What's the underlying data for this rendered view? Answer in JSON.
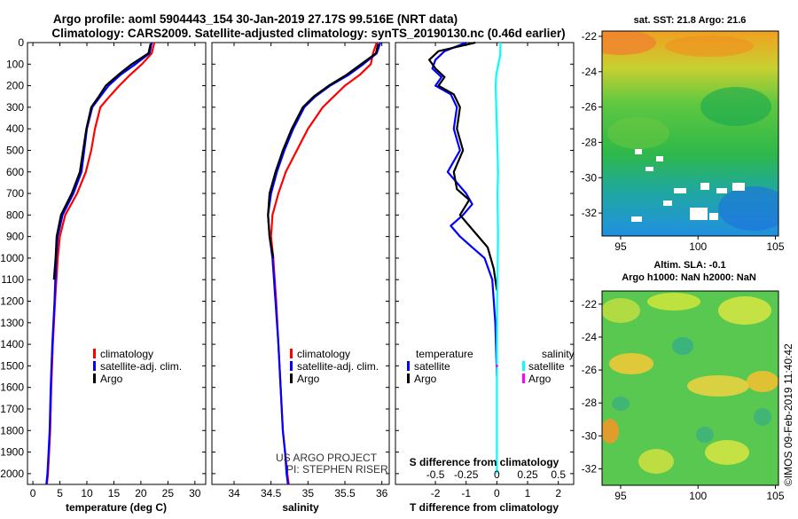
{
  "header": {
    "title_line1": "Argo profile: aoml 5904443_154 30-Jan-2019 27.17S 99.516E (NRT data)",
    "title_line2": "Climatology: CARS2009. Satellite-adjusted climatology: synTS_20190130.nc (0.46d earlier)"
  },
  "depth_axis": {
    "ticks": [
      "0",
      "100",
      "200",
      "300",
      "400",
      "500",
      "600",
      "700",
      "800",
      "900",
      "1000",
      "1100",
      "1200",
      "1300",
      "1400",
      "1500",
      "1600",
      "1700",
      "1800",
      "1900",
      "2000"
    ],
    "range": [
      0,
      2050
    ]
  },
  "chart_data": [
    {
      "type": "line",
      "name": "temperature-panel",
      "xlabel": "temperature (deg C)",
      "xlim": [
        -1,
        32
      ],
      "xticks": [
        "0",
        "5",
        "10",
        "15",
        "20",
        "25",
        "30"
      ],
      "ylabel": "depth",
      "legend": [
        "climatology",
        "satellite-adj. clim.",
        "Argo"
      ],
      "series": [
        {
          "name": "climatology",
          "color": "#ff0000",
          "x": [
            22.5,
            22.0,
            20.2,
            18.0,
            16.0,
            14.2,
            12.5,
            11.5,
            10.8,
            9.8,
            8.2,
            6.0,
            5.0,
            4.6,
            4.1,
            3.7,
            3.4,
            3.2,
            3.0,
            2.8,
            2.6
          ],
          "y": [
            0,
            50,
            100,
            150,
            200,
            250,
            300,
            400,
            500,
            600,
            700,
            800,
            900,
            1000,
            1200,
            1400,
            1600,
            1800,
            1900,
            2000,
            2050
          ]
        },
        {
          "name": "satellite-adj. clim.",
          "color": "#0000ff",
          "x": [
            22.0,
            21.6,
            19.0,
            16.2,
            14.0,
            12.5,
            11.0,
            10.0,
            9.5,
            9.0,
            7.5,
            5.5,
            4.6,
            4.3,
            4.0,
            3.6,
            3.3,
            3.1,
            2.9,
            2.7,
            2.5
          ],
          "y": [
            0,
            50,
            100,
            150,
            200,
            250,
            300,
            400,
            500,
            600,
            700,
            800,
            900,
            1000,
            1200,
            1400,
            1600,
            1800,
            1900,
            2000,
            2050
          ]
        },
        {
          "name": "Argo",
          "color": "#000000",
          "x": [
            21.8,
            21.4,
            18.3,
            15.8,
            13.5,
            12.2,
            10.8,
            9.9,
            9.3,
            8.7,
            7.2,
            5.2,
            4.4,
            4.2,
            3.9
          ],
          "y": [
            5,
            50,
            100,
            150,
            200,
            250,
            300,
            400,
            500,
            600,
            700,
            800,
            900,
            1000,
            1100
          ]
        }
      ]
    },
    {
      "type": "line",
      "name": "salinity-panel",
      "xlabel": "salinity",
      "xlim": [
        33.7,
        36.1
      ],
      "xticks": [
        "34",
        "34.5",
        "35",
        "35.5",
        "36"
      ],
      "ylabel": "depth",
      "legend": [
        "climatology",
        "satellite-adj. clim.",
        "Argo"
      ],
      "annotations": [
        "US ARGO PROJECT",
        "PI: STEPHEN RISER"
      ],
      "series": [
        {
          "name": "climatology",
          "color": "#ff0000",
          "x": [
            35.93,
            35.88,
            35.85,
            35.7,
            35.5,
            35.35,
            35.2,
            35.0,
            34.85,
            34.7,
            34.6,
            34.52,
            34.5,
            34.53,
            34.57,
            34.6,
            34.63,
            34.66,
            34.69,
            34.72,
            34.74
          ],
          "y": [
            0,
            50,
            100,
            150,
            200,
            250,
            300,
            400,
            500,
            600,
            700,
            800,
            900,
            1000,
            1200,
            1400,
            1600,
            1800,
            1900,
            2000,
            2050
          ]
        },
        {
          "name": "satellite-adj. clim.",
          "color": "#0000ff",
          "x": [
            35.98,
            35.93,
            35.75,
            35.55,
            35.3,
            35.1,
            34.95,
            34.8,
            34.68,
            34.58,
            34.5,
            34.46,
            34.48,
            34.52,
            34.56,
            34.6,
            34.63,
            34.66,
            34.69,
            34.71,
            34.73
          ],
          "y": [
            0,
            50,
            100,
            150,
            200,
            250,
            300,
            400,
            500,
            600,
            700,
            800,
            900,
            1000,
            1200,
            1400,
            1600,
            1800,
            1900,
            2000,
            2050
          ]
        },
        {
          "name": "Argo",
          "color": "#000000",
          "x": [
            35.95,
            35.92,
            35.72,
            35.52,
            35.28,
            35.08,
            34.93,
            34.78,
            34.66,
            34.56,
            34.48,
            34.46,
            34.48,
            34.53
          ],
          "y": [
            5,
            50,
            100,
            150,
            200,
            250,
            300,
            400,
            500,
            600,
            700,
            800,
            900,
            1000
          ]
        }
      ]
    },
    {
      "type": "line",
      "name": "difference-panel",
      "xlabel": "T difference from climatology",
      "top_label": "S difference from climatology",
      "xlim": [
        -3.3,
        2.5
      ],
      "xticks": [
        "-2",
        "-1",
        "0",
        "1",
        "2"
      ],
      "top_ticks": [
        "-0.5",
        "-0.25",
        "0",
        "0.25",
        "0.5"
      ],
      "legend_temperature": "temperature",
      "legend_salinity": "salinity",
      "legend_items": [
        "satellite",
        "Argo",
        "satellite",
        "Argo"
      ],
      "series": [
        {
          "name": "temperature satellite",
          "color": "#0000ff",
          "x": [
            -1.0,
            -1.7,
            -2.0,
            -2.1,
            -1.8,
            -2.0,
            -1.5,
            -1.3,
            -1.4,
            -1.2,
            -1.6,
            -1.0,
            -0.8,
            -1.1,
            -1.5,
            -1.2,
            -0.8,
            -0.4,
            -0.15,
            -0.05,
            0.0
          ],
          "y": [
            0,
            40,
            80,
            120,
            160,
            200,
            240,
            300,
            400,
            500,
            600,
            700,
            750,
            800,
            850,
            900,
            950,
            1000,
            1100,
            1300,
            1550
          ]
        },
        {
          "name": "temperature Argo",
          "color": "#000000",
          "x": [
            -0.7,
            -1.9,
            -2.2,
            -2.0,
            -1.7,
            -1.9,
            -1.4,
            -1.2,
            -1.3,
            -1.1,
            -1.4,
            -1.3,
            -0.9,
            -1.2,
            -0.9,
            -0.6,
            -0.3,
            -0.1,
            0.0
          ],
          "y": [
            0,
            40,
            80,
            120,
            160,
            200,
            240,
            300,
            400,
            500,
            600,
            680,
            730,
            800,
            850,
            900,
            950,
            1050,
            1150
          ]
        },
        {
          "name": "salinity satellite",
          "color": "#00ffff",
          "x": [
            0.12,
            0.11,
            0.05,
            -0.02,
            -0.04,
            -0.03,
            -0.02,
            0.0,
            0.02,
            0.04,
            0.02,
            0.03,
            0.04,
            0.03,
            0.02,
            0.01,
            0.0,
            0.0
          ],
          "y": [
            0,
            60,
            100,
            150,
            200,
            250,
            300,
            400,
            500,
            600,
            700,
            800,
            900,
            1000,
            1100,
            1200,
            1400,
            2000
          ]
        },
        {
          "name": "salinity Argo",
          "color": "#ff00ff",
          "x": [
            0.0
          ],
          "y": [
            1500
          ]
        }
      ]
    }
  ],
  "maps": {
    "sst_title": "sat. SST: 21.8 Argo: 21.6",
    "sla_title_line1": "Altim. SLA: -0.1",
    "sla_title_line2": "Argo h1000: NaN h2000: NaN",
    "lat_ticks": [
      "-22",
      "-24",
      "-26",
      "-28",
      "-30",
      "-32"
    ],
    "lon_ticks": [
      "95",
      "100",
      "105"
    ]
  },
  "footer": {
    "stamp": "©IMOS 09-Feb-2019 11:40:42"
  }
}
